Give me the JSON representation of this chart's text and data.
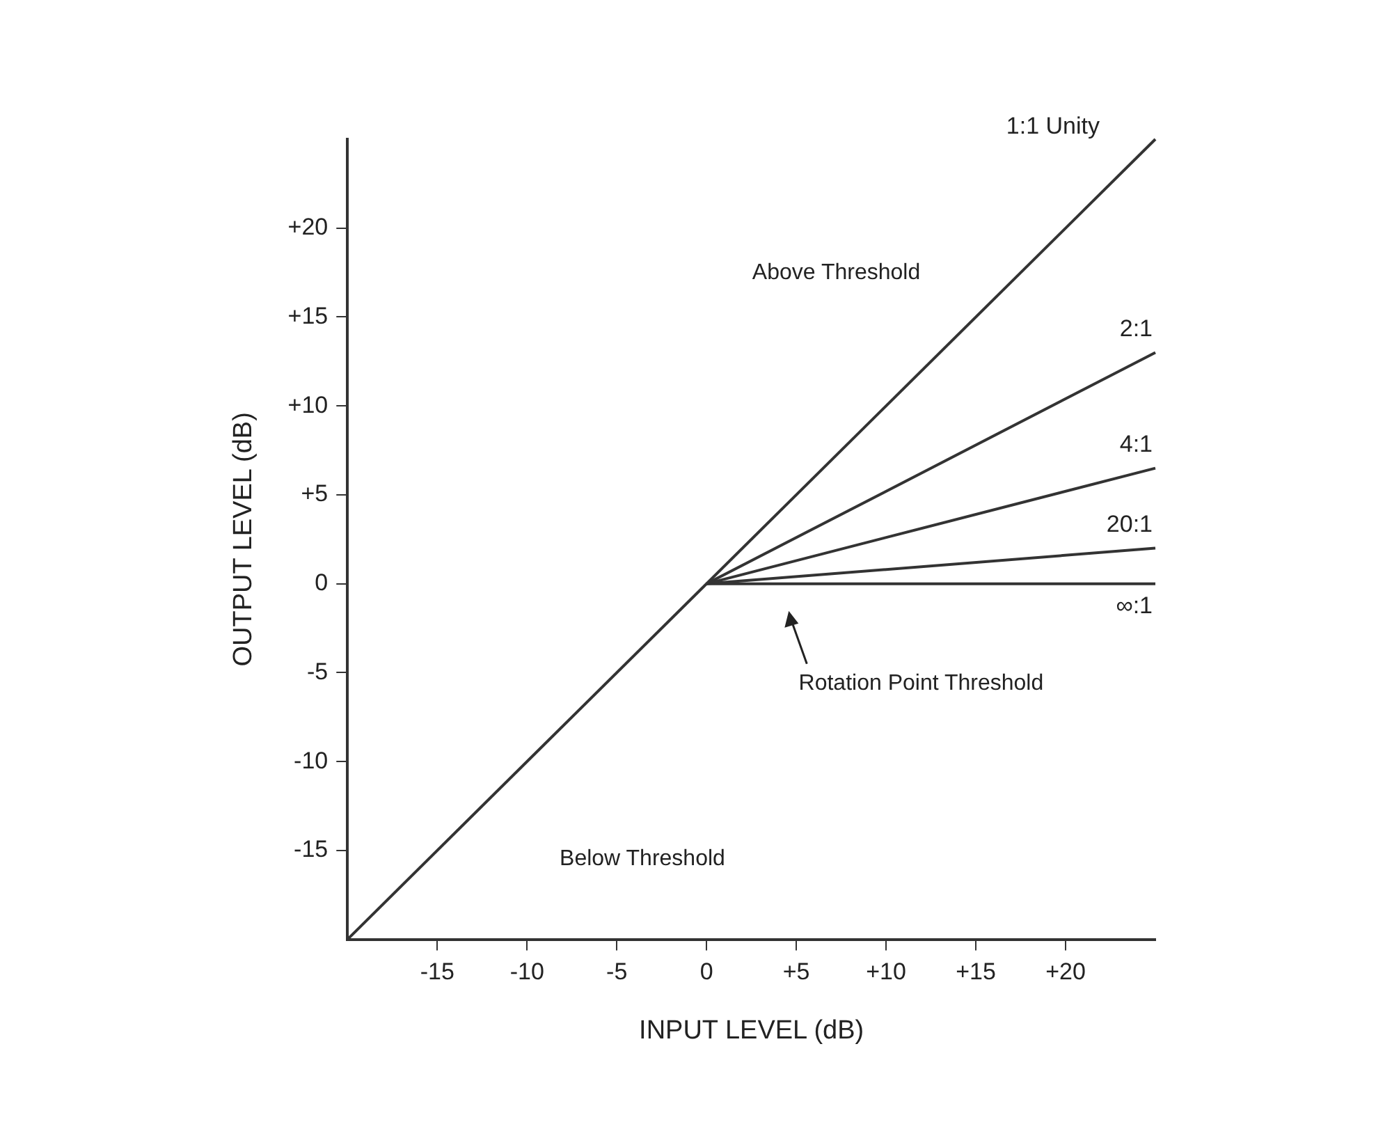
{
  "chart_data": {
    "type": "line",
    "xlabel": "INPUT LEVEL (dB)",
    "ylabel": "OUTPUT LEVEL (dB)",
    "xlim": [
      -20,
      25
    ],
    "ylim": [
      -20,
      25
    ],
    "xticks": [
      -15,
      -10,
      -5,
      0,
      {
        "value": 5,
        "label": "+5"
      },
      {
        "value": 10,
        "label": "+10"
      },
      {
        "value": 15,
        "label": "+15"
      },
      {
        "value": 20,
        "label": "+20"
      }
    ],
    "yticks": [
      -15,
      -10,
      -5,
      0,
      {
        "value": 5,
        "label": "+5"
      },
      {
        "value": 10,
        "label": "+10"
      },
      {
        "value": 15,
        "label": "+15"
      },
      {
        "value": 20,
        "label": "+20"
      }
    ],
    "series": [
      {
        "name": "1:1 Unity",
        "color": "#333333",
        "x": [
          -20,
          25
        ],
        "values": [
          -20,
          25
        ]
      },
      {
        "name": "2:1",
        "color": "#333333",
        "x": [
          0,
          25
        ],
        "values": [
          0,
          13
        ]
      },
      {
        "name": "4:1",
        "color": "#333333",
        "x": [
          0,
          25
        ],
        "values": [
          0,
          6.5
        ]
      },
      {
        "name": "20:1",
        "color": "#333333",
        "x": [
          0,
          25
        ],
        "values": [
          0,
          2
        ]
      },
      {
        "name": "∞:1",
        "color": "#333333",
        "x": [
          0,
          25
        ],
        "values": [
          0,
          0
        ]
      }
    ],
    "annotations": [
      "Above Threshold",
      "Below Threshold",
      "Rotation Point Threshold"
    ],
    "legend": false,
    "grid": false,
    "marker": "none",
    "line_style": "solid"
  }
}
